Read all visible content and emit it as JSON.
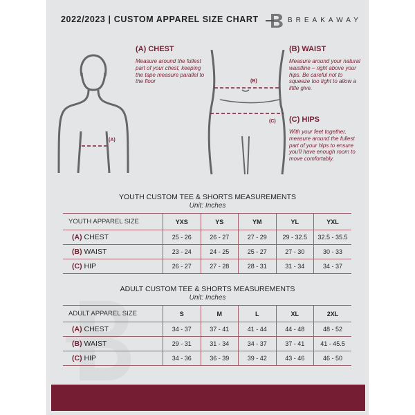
{
  "header": {
    "title": "2022/2023  |  CUSTOM APPAREL SIZE CHART",
    "brand": "BREAKAWAY",
    "watermark": "B"
  },
  "guide": {
    "chest": {
      "heading": "(A) CHEST",
      "text": "Measure around the fullest part of your chest, keeping the tape measure parallel to the floor",
      "marker": "(A)"
    },
    "waist": {
      "heading": "(B) WAIST",
      "text": "Measure around your natural waistline – right above your hips. Be careful not to squeeze too tight to allow a little give.",
      "marker": "(B)"
    },
    "hips": {
      "heading": "(C) HIPS",
      "text": "With your feet together, measure around the fullest part of your hips to ensure you'll have enough room to move comfortably.",
      "marker": "(C)"
    }
  },
  "youth": {
    "title": "YOUTH CUSTOM TEE & SHORTS MEASUREMENTS",
    "unit": "Unit: Inches",
    "header": [
      "YOUTH APPAREL SIZE",
      "YXS",
      "YS",
      "YM",
      "YL",
      "YXL"
    ],
    "rows": [
      {
        "code": "(A)",
        "label": "CHEST",
        "values": [
          "25 - 26",
          "26 - 27",
          "27 - 29",
          "29 - 32.5",
          "32.5 - 35.5"
        ]
      },
      {
        "code": "(B)",
        "label": "WAIST",
        "values": [
          "23 - 24",
          "24 - 25",
          "25 - 27",
          "27 - 30",
          "30 - 33"
        ]
      },
      {
        "code": "(C)",
        "label": "HIP",
        "values": [
          "26 - 27",
          "27 - 28",
          "28 - 31",
          "31 - 34",
          "34 - 37"
        ]
      }
    ]
  },
  "adult": {
    "title": "ADULT CUSTOM TEE & SHORTS MEASUREMENTS",
    "unit": "Unit: Inches",
    "header": [
      "ADULT APPAREL SIZE",
      "S",
      "M",
      "L",
      "XL",
      "2XL"
    ],
    "rows": [
      {
        "code": "(A)",
        "label": "CHEST",
        "values": [
          "34 - 37",
          "37 - 41",
          "41 - 44",
          "44 - 48",
          "48 - 52"
        ]
      },
      {
        "code": "(B)",
        "label": "WAIST",
        "values": [
          "29 - 31",
          "31 - 34",
          "34 - 37",
          "37 - 41",
          "41 - 45.5"
        ]
      },
      {
        "code": "(C)",
        "label": "HIP",
        "values": [
          "34 - 36",
          "36 - 39",
          "39 - 42",
          "43 - 46",
          "46 - 50"
        ]
      }
    ]
  },
  "colors": {
    "accent": "#741d33",
    "panel": "#e4e5e7"
  }
}
